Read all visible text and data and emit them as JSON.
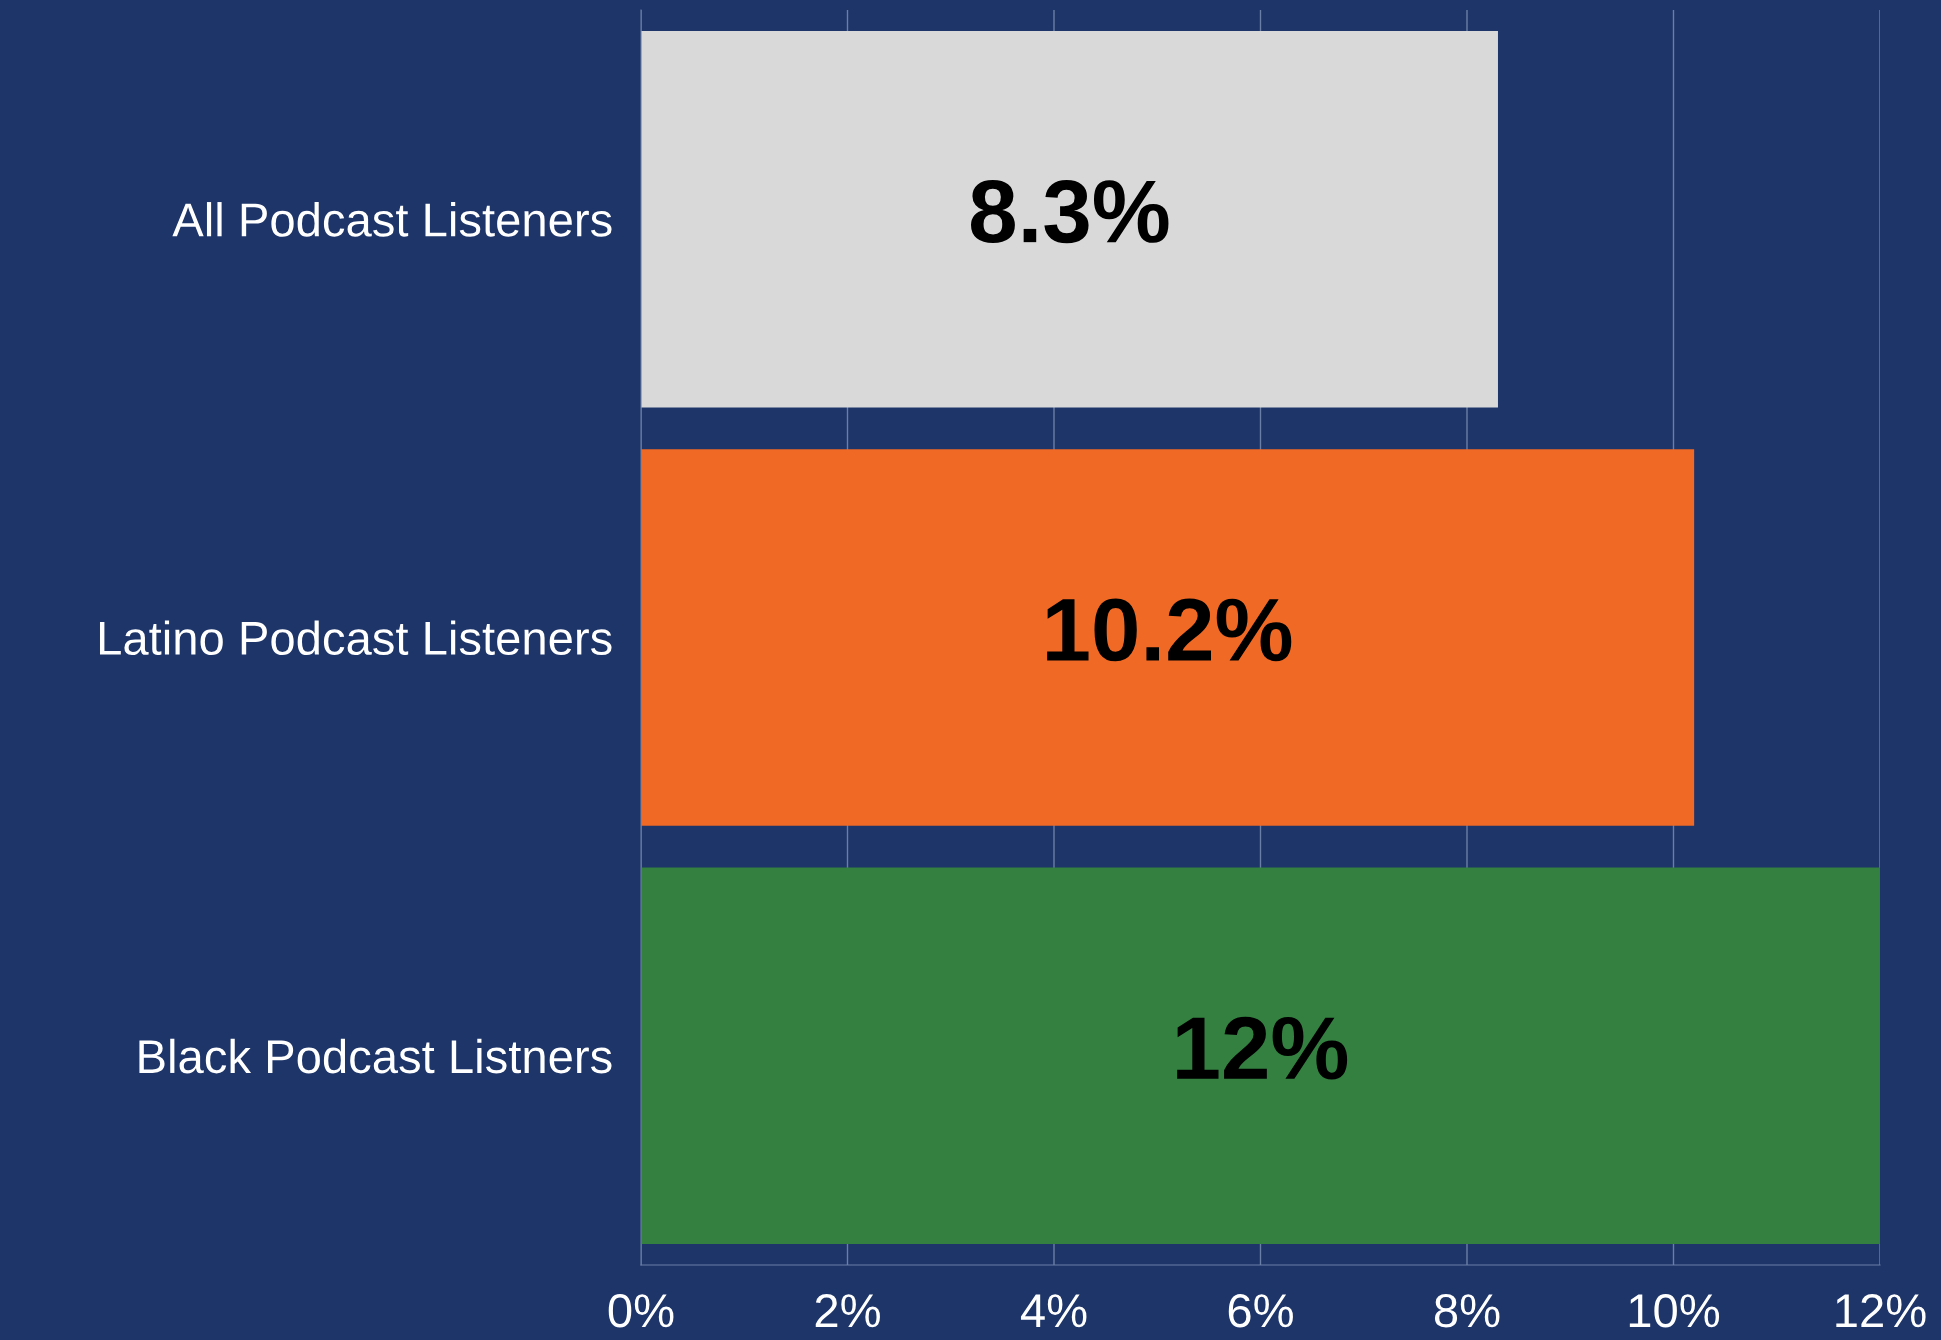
{
  "chart_data": {
    "type": "bar",
    "orientation": "horizontal",
    "categories": [
      "All Podcast Listeners",
      "Latino Podcast Listeners",
      "Black Podcast Listners"
    ],
    "values": [
      8.3,
      10.2,
      12
    ],
    "colors": [
      "#d9d9d9",
      "#f06925",
      "#338040"
    ],
    "value_labels": [
      "8.3%",
      "10.2%",
      "12%"
    ],
    "xlim": [
      0,
      12
    ],
    "xticks": [
      {
        "value": 0,
        "label": "0%"
      },
      {
        "value": 2,
        "label": "2%"
      },
      {
        "value": 4,
        "label": "4%"
      },
      {
        "value": 6,
        "label": "6%"
      },
      {
        "value": 8,
        "label": "8%"
      },
      {
        "value": 10,
        "label": "10%"
      },
      {
        "value": 12,
        "label": "12%"
      }
    ],
    "grid": "x",
    "legend": false
  }
}
